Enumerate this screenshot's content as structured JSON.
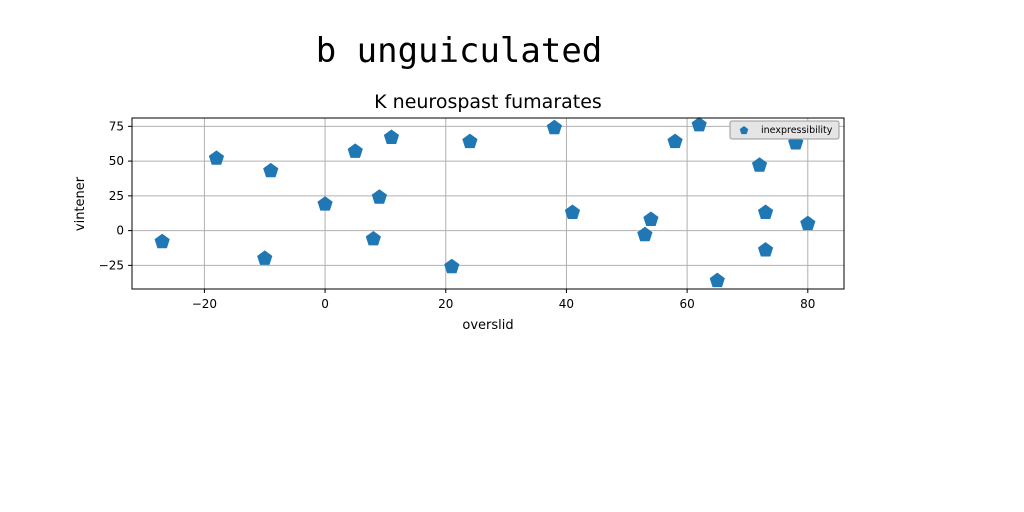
{
  "chart_data": {
    "type": "scatter",
    "suptitle": "b unguiculated",
    "title": "K neurospast fumarates",
    "xlabel": "overslid",
    "ylabel": "vintener",
    "xlim": [
      -32,
      86
    ],
    "ylim": [
      -42,
      81
    ],
    "xticks": [
      -20,
      0,
      20,
      40,
      60,
      80
    ],
    "yticks": [
      -25,
      0,
      25,
      50,
      75
    ],
    "xtick_labels": [
      "−20",
      "0",
      "20",
      "40",
      "60",
      "80"
    ],
    "ytick_labels": [
      "−25",
      "0",
      "25",
      "50",
      "75"
    ],
    "grid": true,
    "legend_position": "upper right",
    "marker": "pentagon",
    "color": "#1f77b4",
    "series": [
      {
        "name": "inexpressibility",
        "points": [
          {
            "x": -27,
            "y": -8
          },
          {
            "x": -18,
            "y": 52
          },
          {
            "x": -10,
            "y": -20
          },
          {
            "x": -9,
            "y": 43
          },
          {
            "x": 0,
            "y": 19
          },
          {
            "x": 5,
            "y": 57
          },
          {
            "x": 8,
            "y": -6
          },
          {
            "x": 9,
            "y": 24
          },
          {
            "x": 11,
            "y": 67
          },
          {
            "x": 21,
            "y": -26
          },
          {
            "x": 24,
            "y": 64
          },
          {
            "x": 38,
            "y": 74
          },
          {
            "x": 41,
            "y": 13
          },
          {
            "x": 53,
            "y": -3
          },
          {
            "x": 54,
            "y": 8
          },
          {
            "x": 58,
            "y": 64
          },
          {
            "x": 62,
            "y": 76
          },
          {
            "x": 65,
            "y": -36
          },
          {
            "x": 72,
            "y": 47
          },
          {
            "x": 73,
            "y": 13
          },
          {
            "x": 73,
            "y": -14
          },
          {
            "x": 78,
            "y": 63
          },
          {
            "x": 80,
            "y": 5
          }
        ]
      }
    ]
  }
}
